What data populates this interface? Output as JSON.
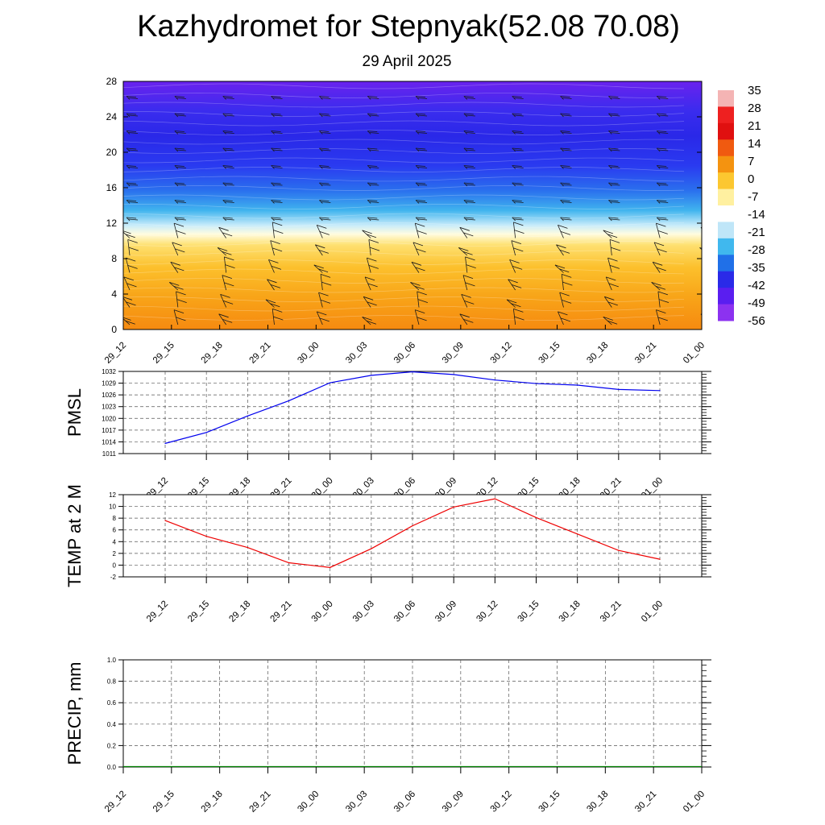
{
  "header": {
    "title": "Kazhydromet for Stepnyak(52.08 70.08)",
    "subtitle": "29 April 2025"
  },
  "chart_data": [
    {
      "type": "heatmap",
      "title": "",
      "description_note": "",
      "x_ticks": [
        "29_12",
        "29_15",
        "29_18",
        "29_21",
        "30_00",
        "30_03",
        "30_06",
        "30_09",
        "30_12",
        "30_15",
        "30_18",
        "30_21",
        "01_00"
      ],
      "y_ticks": [
        0,
        4,
        8,
        12,
        16,
        20,
        24,
        28
      ],
      "ylim": [
        0,
        28
      ],
      "colorbar_labels": [
        "35",
        "28",
        "21",
        "14",
        "7",
        "0",
        "-7",
        "-14",
        "-21",
        "-28",
        "-35",
        "-42",
        "-49",
        "-56"
      ],
      "colorbar_colors": [
        "#f4b4b4",
        "#ee2020",
        "#e01010",
        "#f05a10",
        "#f49310",
        "#fcc730",
        "#fff0a0",
        "#ffffff",
        "#bfe6f8",
        "#40b8ee",
        "#2070e8",
        "#2a2ae8",
        "#5a1ef0",
        "#8c32f0"
      ],
      "colors": {
        "warm_low": "#f68a10",
        "warm_mid": "#fcc02c",
        "freezing_line": "#fffce0",
        "cold_mid": "#2a3af0",
        "cold_top": "#6a22ee"
      }
    },
    {
      "type": "line",
      "ylabel": "PMSL",
      "x": [
        "29_12",
        "29_15",
        "29_18",
        "29_21",
        "30_00",
        "30_03",
        "30_06",
        "30_09",
        "30_12",
        "30_15",
        "30_18",
        "30_21",
        "01_00"
      ],
      "series": [
        {
          "values": [
            1013.6,
            1016.4,
            1020.6,
            1024.5,
            1029.1,
            1031.0,
            1031.9,
            1031.2,
            1029.8,
            1028.9,
            1028.5,
            1027.4,
            1027.1
          ],
          "color": "#0000ee"
        }
      ],
      "y_ticks": [
        "1011",
        "1014",
        "1017",
        "1020",
        "1023",
        "1026",
        "1029",
        "1032"
      ],
      "ylim": [
        1011,
        1032
      ],
      "grid": true
    },
    {
      "type": "line",
      "ylabel": "TEMP at 2 M",
      "x": [
        "29_12",
        "29_15",
        "29_18",
        "29_21",
        "30_00",
        "30_03",
        "30_06",
        "30_09",
        "30_12",
        "30_15",
        "30_18",
        "30_21",
        "01_00"
      ],
      "series": [
        {
          "values": [
            7.6,
            4.9,
            3.0,
            0.4,
            -0.4,
            2.8,
            6.7,
            9.9,
            11.3,
            8.1,
            5.3,
            2.5,
            1.0
          ],
          "color": "#ee0000"
        }
      ],
      "y_ticks": [
        "-2",
        "0",
        "2",
        "4",
        "6",
        "8",
        "10",
        "12"
      ],
      "ylim": [
        -2,
        12
      ],
      "grid": true
    },
    {
      "type": "bar",
      "ylabel": "PRECIP, mm",
      "x": [
        "29_12",
        "29_15",
        "29_18",
        "29_21",
        "30_00",
        "30_03",
        "30_06",
        "30_09",
        "30_12",
        "30_15",
        "30_18",
        "30_21",
        "01_00"
      ],
      "series": [
        {
          "values": [
            0,
            0,
            0,
            0,
            0,
            0,
            0,
            0,
            0,
            0,
            0,
            0,
            0
          ],
          "color": "#008000"
        }
      ],
      "y_ticks": [
        "0.0",
        "0.2",
        "0.4",
        "0.6",
        "0.8",
        "1.0"
      ],
      "ylim": [
        0,
        1.0
      ],
      "grid": true
    }
  ]
}
